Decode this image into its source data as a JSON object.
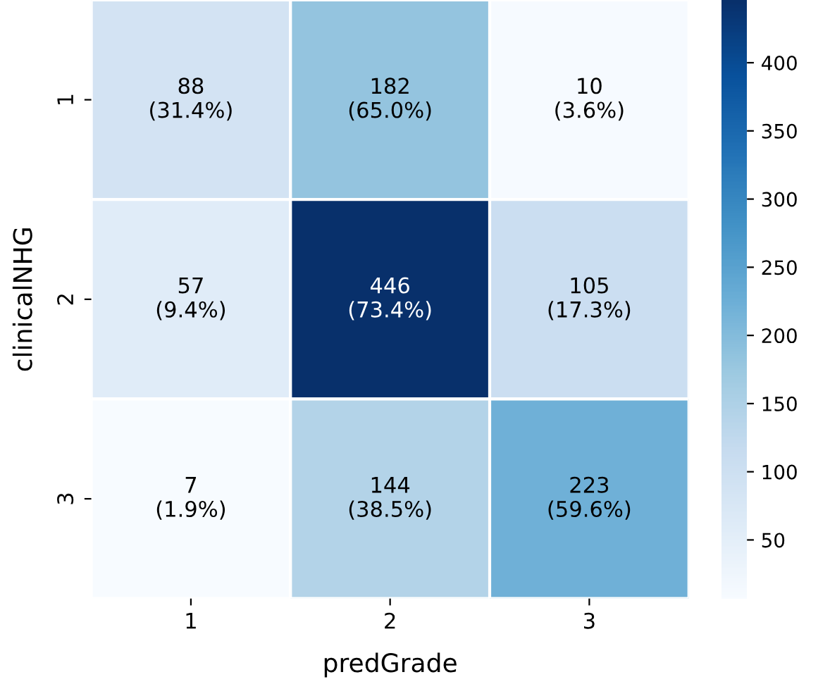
{
  "chart_data": {
    "type": "heatmap",
    "xlabel": "predGrade",
    "ylabel": "clinicalNHG",
    "categories": [
      "1",
      "2",
      "3"
    ],
    "y_categories": [
      "1",
      "2",
      "3"
    ],
    "cells": [
      [
        88,
        182,
        10
      ],
      [
        57,
        446,
        105
      ],
      [
        7,
        144,
        223
      ]
    ],
    "cell_labels": [
      [
        "88\n(31.4%)",
        "182\n(65.0%)",
        "10\n(3.6%)"
      ],
      [
        "57\n(9.4%)",
        "446\n(73.4%)",
        "105\n(17.3%)"
      ],
      [
        "7\n(1.9%)",
        "144\n(38.5%)",
        "223\n(59.6%)"
      ]
    ],
    "clim": [
      7,
      446
    ],
    "cticks": [
      50,
      100,
      150,
      200,
      250,
      300,
      350,
      400
    ]
  }
}
